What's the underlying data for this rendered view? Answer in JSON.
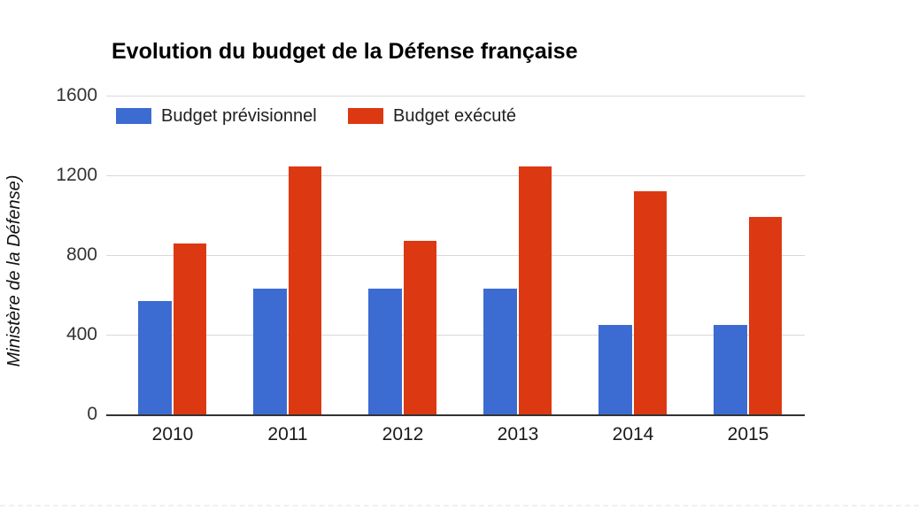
{
  "page": {
    "background": "#ffffff"
  },
  "chart_data": {
    "type": "bar",
    "title": "Evolution du budget de la Défense française",
    "categories": [
      "2010",
      "2011",
      "2012",
      "2013",
      "2014",
      "2015"
    ],
    "series": [
      {
        "name": "Budget prévisionnel",
        "color": "#3c6cd2",
        "values": [
          570,
          630,
          630,
          630,
          450,
          450
        ]
      },
      {
        "name": "Budget exécuté",
        "color": "#dc3912",
        "values": [
          860,
          1245,
          870,
          1245,
          1120,
          990
        ]
      }
    ],
    "xlabel": "",
    "ylabel": "Ministère de la Défense)",
    "ylim": [
      0,
      1600
    ],
    "yticks": [
      0,
      400,
      800,
      1200,
      1600
    ],
    "grid": true,
    "legend_position": "top-left",
    "axis_line_color": "#333333",
    "gridline_color": "#d9d9d9"
  }
}
